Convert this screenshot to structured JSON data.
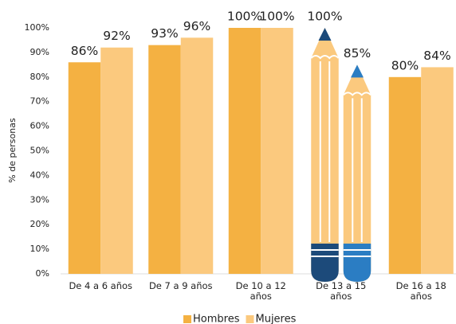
{
  "chart_data": {
    "type": "bar",
    "y_label": "% de personas",
    "categories": [
      "De 4 a 6 años",
      "De 7 a 9 años",
      "De 10 a 12 años",
      "De 13 a 15 años",
      "De 16 a 18 años"
    ],
    "series": [
      {
        "name": "Hombres",
        "color": "#f4b142",
        "values": [
          86,
          93,
          100,
          100,
          80
        ],
        "value_labels": [
          "86%",
          "93%",
          "100%",
          "100%",
          "80%"
        ]
      },
      {
        "name": "Mujeres",
        "color": "#fbc97e",
        "values": [
          92,
          96,
          100,
          85,
          84
        ],
        "value_labels": [
          "92%",
          "96%",
          "100%",
          "85%",
          "84%"
        ]
      }
    ],
    "ylim": [
      0,
      100
    ],
    "yticks": [
      {
        "value": 0,
        "label": "0%"
      },
      {
        "value": 10,
        "label": "10%"
      },
      {
        "value": 20,
        "label": "20%"
      },
      {
        "value": 30,
        "label": "30%"
      },
      {
        "value": 40,
        "label": "40%"
      },
      {
        "value": 50,
        "label": "50%"
      },
      {
        "value": 60,
        "label": "60%"
      },
      {
        "value": 70,
        "label": "70%"
      },
      {
        "value": 80,
        "label": "80%"
      },
      {
        "value": 90,
        "label": "90%"
      },
      {
        "value": 100,
        "label": "100%"
      }
    ],
    "legend": "bottom"
  }
}
